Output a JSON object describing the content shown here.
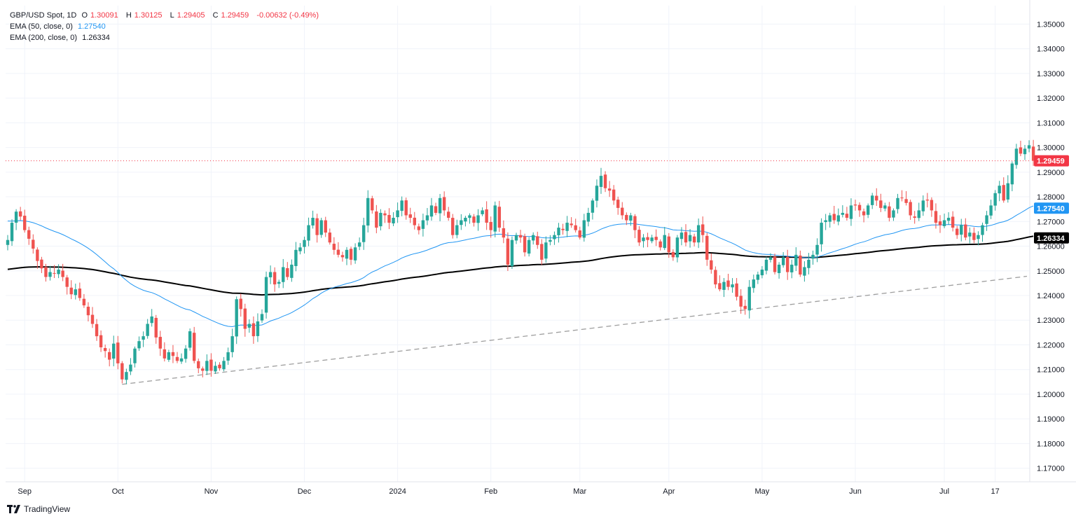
{
  "legend": {
    "symbol": "GBP/USD Spot, 1D",
    "open_label": "O",
    "open": "1.30091",
    "high_label": "H",
    "high": "1.30125",
    "low_label": "L",
    "low": "1.29405",
    "close_label": "C",
    "close": "1.29459",
    "change": "-0.00632 (-0.49%)",
    "ema50_label": "EMA (50, close, 0)",
    "ema50_value": "1.27540",
    "ema200_label": "EMA (200, close, 0)",
    "ema200_value": "1.26334"
  },
  "branding": {
    "name": "TradingView"
  },
  "colors": {
    "up": "#26a69a",
    "down": "#ef5350",
    "ema50": "#2196f3",
    "ema200": "#000000",
    "trendline": "#9e9e9e",
    "last_price": "#f23645"
  },
  "chart_data": {
    "type": "candlestick",
    "title": "GBP/USD Spot, 1D",
    "y_range": [
      1.1645,
      1.3575
    ],
    "y_ticks": [
      "1.35000",
      "1.34000",
      "1.33000",
      "1.32000",
      "1.31000",
      "1.30000",
      "1.29000",
      "1.28000",
      "1.27000",
      "1.26000",
      "1.25000",
      "1.24000",
      "1.23000",
      "1.22000",
      "1.21000",
      "1.20000",
      "1.19000",
      "1.18000",
      "1.17000"
    ],
    "x_labels": [
      "Sep",
      "Oct",
      "Nov",
      "Dec",
      "2024",
      "Feb",
      "Mar",
      "Apr",
      "May",
      "Jun",
      "Jul",
      "17"
    ],
    "x_label_index": [
      4,
      26,
      48,
      70,
      92,
      114,
      135,
      156,
      178,
      200,
      221,
      233
    ],
    "price_labels": [
      {
        "name": "last-price",
        "value": "1.29459",
        "y": 1.29459
      },
      {
        "name": "ema50",
        "value": "1.27540",
        "y": 1.2754
      },
      {
        "name": "ema200",
        "value": "1.26334",
        "y": 1.26334
      }
    ],
    "series": [
      {
        "name": "close",
        "values": [
          1.2625,
          1.2695,
          1.274,
          1.272,
          1.2665,
          1.263,
          1.259,
          1.254,
          1.251,
          1.2475,
          1.2495,
          1.249,
          1.2505,
          1.2475,
          1.2435,
          1.2405,
          1.2425,
          1.239,
          1.236,
          1.232,
          1.2285,
          1.2235,
          1.219,
          1.2175,
          1.214,
          1.2205,
          1.2125,
          1.206,
          1.209,
          1.212,
          1.2185,
          1.2215,
          1.2235,
          1.2285,
          1.2315,
          1.223,
          1.2185,
          1.2145,
          1.217,
          1.2155,
          1.2135,
          1.2145,
          1.2185,
          1.2255,
          1.2135,
          1.2105,
          1.2095,
          1.2135,
          1.2095,
          1.2115,
          1.2105,
          1.2135,
          1.217,
          1.2235,
          1.2385,
          1.2345,
          1.2265,
          1.2285,
          1.2235,
          1.2295,
          1.2325,
          1.2475,
          1.2495,
          1.2445,
          1.2455,
          1.2515,
          1.2475,
          1.2525,
          1.2585,
          1.2595,
          1.2625,
          1.2685,
          1.2715,
          1.2645,
          1.2705,
          1.2655,
          1.2615,
          1.2585,
          1.2565,
          1.2555,
          1.2585,
          1.2545,
          1.2595,
          1.2615,
          1.2685,
          1.2795,
          1.2745,
          1.2675,
          1.2735,
          1.2725,
          1.2695,
          1.2715,
          1.2745,
          1.2785,
          1.2725,
          1.2715,
          1.2685,
          1.2665,
          1.2705,
          1.2725,
          1.2765,
          1.2735,
          1.2795,
          1.2745,
          1.2715,
          1.2645,
          1.2685,
          1.2705,
          1.2715,
          1.2725,
          1.2695,
          1.2725,
          1.2745,
          1.2695,
          1.2665,
          1.2765,
          1.2675,
          1.2635,
          1.2525,
          1.2625,
          1.2645,
          1.2635,
          1.2575,
          1.2625,
          1.2645,
          1.2605,
          1.2545,
          1.2615,
          1.2625,
          1.2645,
          1.2675,
          1.2665,
          1.2695,
          1.2685,
          1.2665,
          1.2635,
          1.2705,
          1.2735,
          1.2785,
          1.2845,
          1.2885,
          1.2835,
          1.2825,
          1.2785,
          1.2755,
          1.2725,
          1.2705,
          1.2725,
          1.2665,
          1.2615,
          1.2635,
          1.2625,
          1.2635,
          1.2625,
          1.2595,
          1.2645,
          1.2575,
          1.2555,
          1.2635,
          1.2655,
          1.2615,
          1.2645,
          1.2615,
          1.2685,
          1.2645,
          1.2545,
          1.2505,
          1.2445,
          1.2425,
          1.2455,
          1.2435,
          1.2445,
          1.2395,
          1.2355,
          1.2345,
          1.2435,
          1.2465,
          1.2485,
          1.2505,
          1.2545,
          1.2555,
          1.2495,
          1.2525,
          1.2555,
          1.2495,
          1.2525,
          1.2565,
          1.2485,
          1.2515,
          1.2545,
          1.2565,
          1.2605,
          1.2695,
          1.2705,
          1.2725,
          1.2705,
          1.2725,
          1.2735,
          1.2715,
          1.2765,
          1.2765,
          1.2745,
          1.2725,
          1.2765,
          1.2805,
          1.2785,
          1.2755,
          1.2765,
          1.2715,
          1.2745,
          1.2795,
          1.2795,
          1.2775,
          1.2725,
          1.2715,
          1.2745,
          1.2785,
          1.2785,
          1.2745,
          1.2695,
          1.2685,
          1.2705,
          1.2715,
          1.2675,
          1.2645,
          1.2685,
          1.2635,
          1.2655,
          1.2625,
          1.2645,
          1.2685,
          1.2725,
          1.2765,
          1.2815,
          1.2845,
          1.2785,
          1.2855,
          1.2935,
          1.2995,
          1.2975,
          1.2995,
          1.3009,
          1.29459
        ]
      }
    ]
  }
}
